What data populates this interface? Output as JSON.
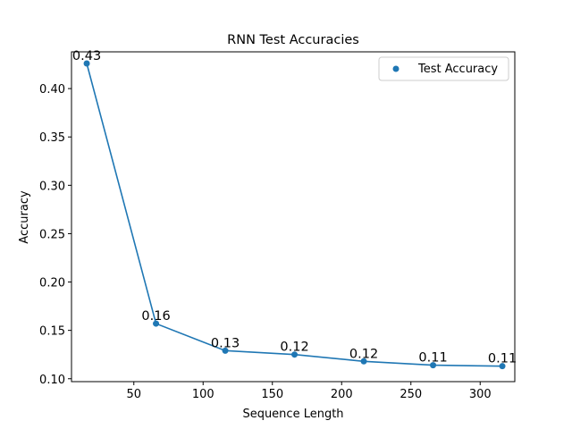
{
  "chart_data": {
    "type": "line",
    "title": "RNN Test Accuracies",
    "xlabel": "Sequence Length",
    "ylabel": "Accuracy",
    "xlim": [
      5,
      325
    ],
    "ylim": [
      0.097,
      0.438
    ],
    "xticks": [
      50,
      100,
      150,
      200,
      250,
      300
    ],
    "yticks": [
      0.1,
      0.15,
      0.2,
      0.25,
      0.3,
      0.35,
      0.4
    ],
    "ytick_labels": [
      "0.10",
      "0.15",
      "0.20",
      "0.25",
      "0.30",
      "0.35",
      "0.40"
    ],
    "grid": false,
    "legend_position": "top-right",
    "series": [
      {
        "name": "Test Accuracy",
        "color": "#1f77b4",
        "x": [
          16,
          66,
          116,
          166,
          216,
          266,
          316
        ],
        "y": [
          0.426,
          0.157,
          0.129,
          0.125,
          0.118,
          0.114,
          0.113
        ],
        "labels": [
          "0.43",
          "0.16",
          "0.13",
          "0.12",
          "0.12",
          "0.11",
          "0.11"
        ]
      }
    ]
  }
}
